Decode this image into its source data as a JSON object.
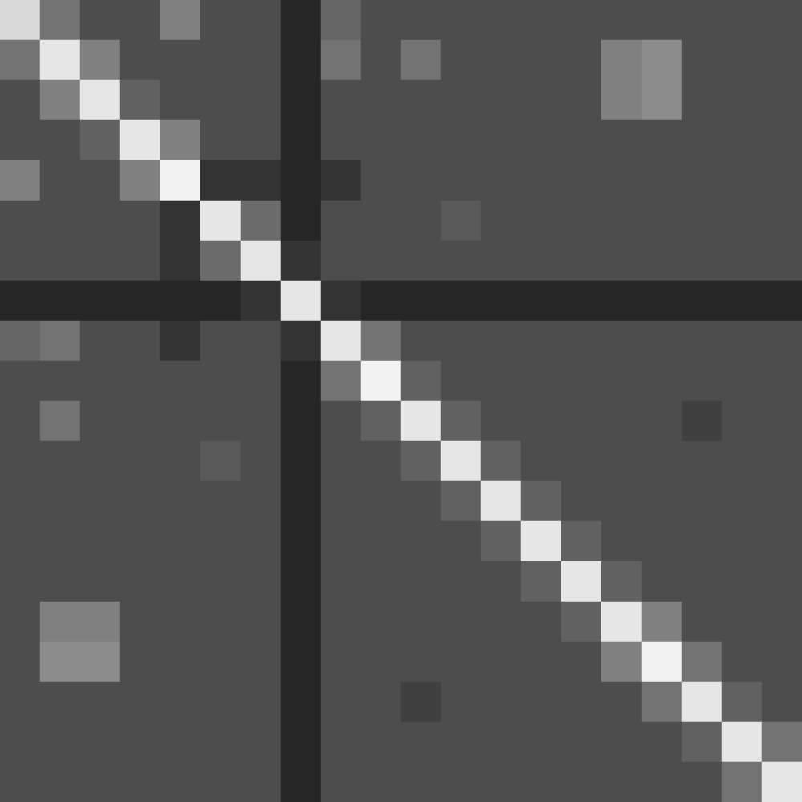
{
  "chart_data": {
    "type": "heatmap",
    "color": "gray",
    "tick_labels": false,
    "color_range": [
      0,
      1
    ],
    "cells": [
      [
        0.85,
        0.45,
        0.3,
        0.3,
        0.5,
        0.3,
        0.3,
        0.15,
        0.4,
        0.3,
        0.3,
        0.3,
        0.3,
        0.3,
        0.3,
        0.3,
        0.3,
        0.3,
        0.3,
        0.3
      ],
      [
        0.45,
        0.9,
        0.5,
        0.3,
        0.3,
        0.3,
        0.3,
        0.15,
        0.45,
        0.3,
        0.45,
        0.3,
        0.3,
        0.3,
        0.3,
        0.5,
        0.55,
        0.3,
        0.3,
        0.3
      ],
      [
        0.3,
        0.5,
        0.9,
        0.38,
        0.3,
        0.3,
        0.3,
        0.15,
        0.3,
        0.3,
        0.3,
        0.3,
        0.3,
        0.3,
        0.3,
        0.5,
        0.55,
        0.3,
        0.3,
        0.3
      ],
      [
        0.3,
        0.3,
        0.38,
        0.9,
        0.5,
        0.3,
        0.3,
        0.15,
        0.3,
        0.3,
        0.3,
        0.3,
        0.3,
        0.3,
        0.3,
        0.3,
        0.3,
        0.3,
        0.3,
        0.3
      ],
      [
        0.5,
        0.3,
        0.3,
        0.5,
        0.95,
        0.2,
        0.2,
        0.15,
        0.2,
        0.3,
        0.3,
        0.3,
        0.3,
        0.3,
        0.3,
        0.3,
        0.3,
        0.3,
        0.3,
        0.3
      ],
      [
        0.3,
        0.3,
        0.3,
        0.3,
        0.2,
        0.9,
        0.42,
        0.15,
        0.3,
        0.3,
        0.3,
        0.35,
        0.3,
        0.3,
        0.3,
        0.3,
        0.3,
        0.3,
        0.3,
        0.3
      ],
      [
        0.3,
        0.3,
        0.3,
        0.3,
        0.2,
        0.42,
        0.9,
        0.2,
        0.3,
        0.3,
        0.3,
        0.3,
        0.3,
        0.3,
        0.3,
        0.3,
        0.3,
        0.3,
        0.3,
        0.3
      ],
      [
        0.15,
        0.15,
        0.15,
        0.15,
        0.15,
        0.15,
        0.2,
        0.9,
        0.2,
        0.15,
        0.15,
        0.15,
        0.15,
        0.15,
        0.15,
        0.15,
        0.15,
        0.15,
        0.15,
        0.15
      ],
      [
        0.4,
        0.45,
        0.3,
        0.3,
        0.2,
        0.3,
        0.3,
        0.2,
        0.9,
        0.45,
        0.3,
        0.3,
        0.3,
        0.3,
        0.3,
        0.3,
        0.3,
        0.3,
        0.3,
        0.3
      ],
      [
        0.3,
        0.3,
        0.3,
        0.3,
        0.3,
        0.3,
        0.3,
        0.15,
        0.45,
        0.95,
        0.38,
        0.3,
        0.3,
        0.3,
        0.3,
        0.3,
        0.3,
        0.3,
        0.3,
        0.3
      ],
      [
        0.3,
        0.45,
        0.3,
        0.3,
        0.3,
        0.3,
        0.3,
        0.15,
        0.3,
        0.38,
        0.9,
        0.38,
        0.3,
        0.3,
        0.3,
        0.3,
        0.3,
        0.25,
        0.3,
        0.3
      ],
      [
        0.3,
        0.3,
        0.3,
        0.3,
        0.3,
        0.35,
        0.3,
        0.15,
        0.3,
        0.3,
        0.38,
        0.9,
        0.38,
        0.3,
        0.3,
        0.3,
        0.3,
        0.3,
        0.3,
        0.3
      ],
      [
        0.3,
        0.3,
        0.3,
        0.3,
        0.3,
        0.3,
        0.3,
        0.15,
        0.3,
        0.3,
        0.3,
        0.38,
        0.9,
        0.38,
        0.3,
        0.3,
        0.3,
        0.3,
        0.3,
        0.3
      ],
      [
        0.3,
        0.3,
        0.3,
        0.3,
        0.3,
        0.3,
        0.3,
        0.15,
        0.3,
        0.3,
        0.3,
        0.3,
        0.38,
        0.9,
        0.38,
        0.3,
        0.3,
        0.3,
        0.3,
        0.3
      ],
      [
        0.3,
        0.3,
        0.3,
        0.3,
        0.3,
        0.3,
        0.3,
        0.15,
        0.3,
        0.3,
        0.3,
        0.3,
        0.3,
        0.38,
        0.9,
        0.38,
        0.3,
        0.3,
        0.3,
        0.3
      ],
      [
        0.3,
        0.5,
        0.5,
        0.3,
        0.3,
        0.3,
        0.3,
        0.15,
        0.3,
        0.3,
        0.3,
        0.3,
        0.3,
        0.3,
        0.38,
        0.9,
        0.5,
        0.3,
        0.3,
        0.3
      ],
      [
        0.3,
        0.55,
        0.55,
        0.3,
        0.3,
        0.3,
        0.3,
        0.15,
        0.3,
        0.3,
        0.3,
        0.3,
        0.3,
        0.3,
        0.3,
        0.5,
        0.95,
        0.45,
        0.3,
        0.3
      ],
      [
        0.3,
        0.3,
        0.3,
        0.3,
        0.3,
        0.3,
        0.3,
        0.15,
        0.3,
        0.3,
        0.25,
        0.3,
        0.3,
        0.3,
        0.3,
        0.3,
        0.45,
        0.9,
        0.38,
        0.3
      ],
      [
        0.3,
        0.3,
        0.3,
        0.3,
        0.3,
        0.3,
        0.3,
        0.15,
        0.3,
        0.3,
        0.3,
        0.3,
        0.3,
        0.3,
        0.3,
        0.3,
        0.3,
        0.38,
        0.9,
        0.45
      ],
      [
        0.3,
        0.3,
        0.3,
        0.3,
        0.3,
        0.3,
        0.3,
        0.15,
        0.3,
        0.3,
        0.3,
        0.3,
        0.3,
        0.3,
        0.3,
        0.3,
        0.3,
        0.3,
        0.45,
        0.9
      ]
    ]
  }
}
